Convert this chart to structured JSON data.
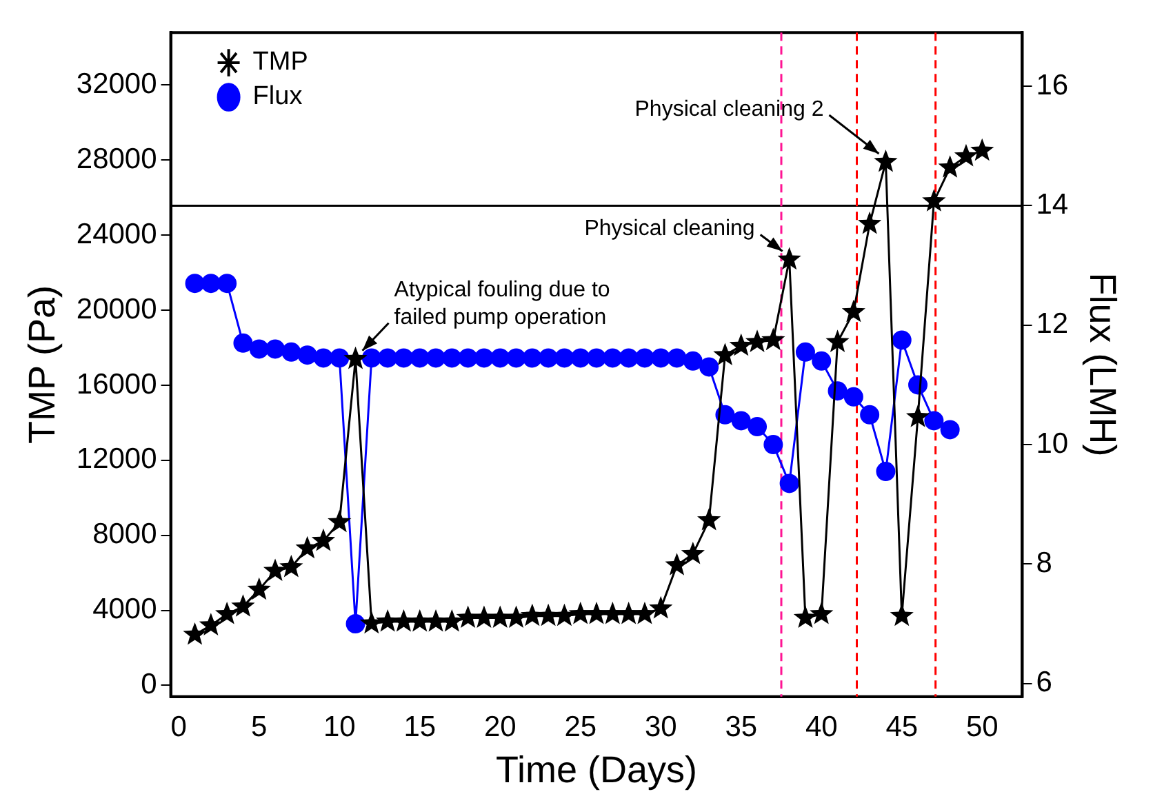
{
  "chart_data": {
    "type": "line",
    "xlabel": "Time (Days)",
    "ylabel": "TMP (Pa)",
    "y2label": "Flux (LMH)",
    "xlim": [
      -0.5,
      52.5
    ],
    "xticks": [
      0,
      5,
      10,
      15,
      20,
      25,
      30,
      35,
      40,
      45,
      50
    ],
    "ylim": [
      -600,
      34800
    ],
    "yticks": [
      0,
      4000,
      8000,
      12000,
      16000,
      20000,
      24000,
      28000,
      32000
    ],
    "y2lim": [
      5.78,
      16.9
    ],
    "y2ticks": [
      6,
      8,
      10,
      12,
      14,
      16
    ],
    "grid": false,
    "legend": "top left",
    "series": [
      {
        "name": "TMP",
        "color": "#000000",
        "marker": "star",
        "x": [
          1,
          2,
          3,
          4,
          5,
          6,
          7,
          8,
          9,
          10,
          11,
          12,
          13,
          14,
          15,
          16,
          17,
          18,
          19,
          20,
          21,
          22,
          23,
          24,
          25,
          26,
          27,
          28,
          29,
          30,
          31,
          32,
          33,
          34,
          35,
          36,
          37,
          38,
          39,
          40,
          41,
          42,
          43,
          44,
          45,
          46,
          47,
          48,
          49,
          50
        ],
        "values": [
          2700,
          3200,
          3800,
          4200,
          5100,
          6100,
          6300,
          7300,
          7700,
          8700,
          17400,
          3300,
          3400,
          3400,
          3400,
          3400,
          3400,
          3600,
          3600,
          3600,
          3600,
          3700,
          3700,
          3700,
          3800,
          3800,
          3800,
          3800,
          3800,
          4100,
          6400,
          7000,
          8800,
          17600,
          18100,
          18300,
          18400,
          22700,
          3600,
          3800,
          18300,
          19900,
          24600,
          27900,
          3700,
          14300,
          25800,
          27600,
          28200,
          28500
        ]
      },
      {
        "name": "Flux",
        "color": "#0000ff",
        "marker": "circle",
        "axis": "y2",
        "x": [
          1,
          2,
          3,
          4,
          5,
          6,
          7,
          8,
          9,
          10,
          11,
          12,
          13,
          14,
          15,
          16,
          17,
          18,
          19,
          20,
          21,
          22,
          23,
          24,
          25,
          26,
          27,
          28,
          29,
          30,
          31,
          32,
          33,
          34,
          35,
          36,
          37,
          38,
          39,
          40,
          41,
          42,
          43,
          44,
          45,
          46,
          47,
          48
        ],
        "values": [
          12.7,
          12.7,
          12.7,
          11.7,
          11.6,
          11.6,
          11.55,
          11.5,
          11.45,
          11.45,
          7.0,
          11.45,
          11.45,
          11.45,
          11.45,
          11.45,
          11.45,
          11.45,
          11.45,
          11.45,
          11.45,
          11.45,
          11.45,
          11.45,
          11.45,
          11.45,
          11.45,
          11.45,
          11.45,
          11.45,
          11.45,
          11.4,
          11.3,
          10.5,
          10.4,
          10.3,
          10.0,
          9.35,
          11.55,
          11.4,
          10.9,
          10.8,
          10.5,
          9.55,
          11.75,
          11.0,
          10.4,
          10.25
        ]
      }
    ],
    "ref_lines": [
      {
        "axis": "y2",
        "value": 14,
        "color": "#000000",
        "line_style": "solid"
      },
      {
        "axis": "x",
        "value": 37.5,
        "color": "#ff1493",
        "line_style": "dashed"
      },
      {
        "axis": "x",
        "value": 42.2,
        "color": "#ff0000",
        "line_style": "dashed"
      },
      {
        "axis": "x",
        "value": 47.1,
        "color": "#ff0000",
        "line_style": "dashed"
      }
    ],
    "annotations": [
      {
        "text": "Atypical fouling due to failed pump operation",
        "x": 11,
        "y": 17400
      },
      {
        "text": "Physical cleaning",
        "x": 38,
        "y": 22700
      },
      {
        "text": "Physical cleaning 2",
        "x": 44,
        "y": 27900
      }
    ]
  }
}
